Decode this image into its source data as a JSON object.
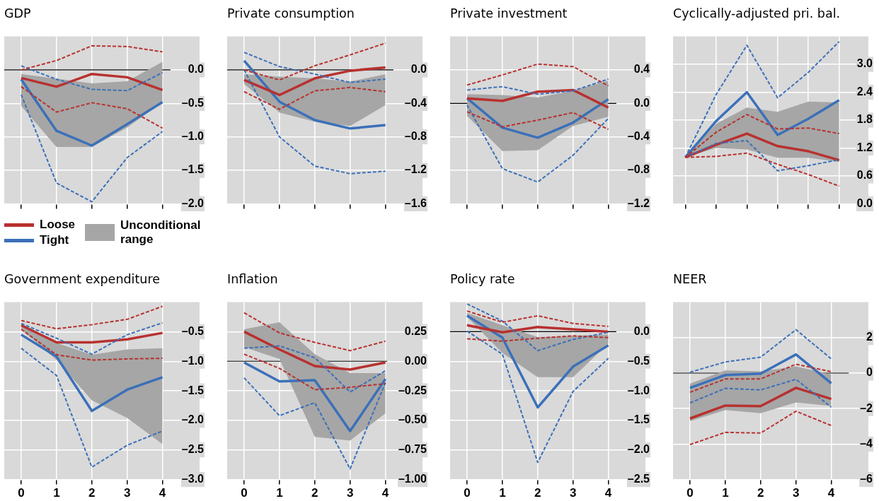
{
  "chart_data": [
    {
      "type": "line",
      "title": "GDP",
      "x": [
        0,
        1,
        2,
        3,
        4
      ],
      "xlim": [
        -0.48,
        5.05
      ],
      "xticks": [
        0,
        1,
        2,
        3,
        4
      ],
      "ylim": [
        -2.0,
        0.5
      ],
      "yticks": [
        {
          "value": 0,
          "label": "0.0"
        },
        {
          "value": -0.5,
          "label": "–0.5"
        },
        {
          "value": -1.0,
          "label": "–1.0"
        },
        {
          "value": -1.5,
          "label": "–1.5"
        },
        {
          "value": -2.0,
          "label": "–2.0"
        }
      ],
      "tick_labels": "y",
      "grid": true,
      "marker": "none",
      "legend": "bottom",
      "ref_lines": [
        {
          "axis": "y",
          "value": 0,
          "color": "#000000"
        }
      ],
      "series": [
        {
          "name": "Loose",
          "type": "line",
          "color": "#b8312f",
          "values": [
            -0.12,
            -0.25,
            -0.06,
            -0.11,
            -0.3
          ]
        },
        {
          "name": "Tight",
          "type": "line",
          "color": "#3b70b9",
          "values": [
            -0.14,
            -0.91,
            -1.13,
            -0.81,
            -0.48
          ]
        },
        {
          "name": "Unconditional range",
          "type": "line",
          "color": "#a6a6a6",
          "values": [
            null,
            null,
            null,
            null,
            null
          ],
          "lower": [
            -0.54,
            -1.15,
            -1.15,
            -0.86,
            -0.48
          ],
          "upper": [
            -0.06,
            -0.13,
            -0.2,
            -0.17,
            0.12
          ]
        },
        {
          "type": "line",
          "color": "#b8312f",
          "line_style": "dashed",
          "values": [
            0.0,
            0.14,
            0.36,
            0.35,
            0.27
          ]
        },
        {
          "type": "line",
          "color": "#b8312f",
          "line_style": "dashed",
          "values": [
            -0.25,
            -0.63,
            -0.49,
            -0.58,
            -0.87
          ]
        },
        {
          "type": "line",
          "color": "#3b70b9",
          "line_style": "dashed",
          "values": [
            0.06,
            -0.14,
            -0.29,
            -0.31,
            -0.04
          ]
        },
        {
          "type": "line",
          "color": "#3b70b9",
          "line_style": "dashed",
          "values": [
            -0.37,
            -1.69,
            -1.97,
            -1.31,
            -0.92
          ]
        }
      ]
    },
    {
      "type": "line",
      "title": "Private consumption",
      "x": [
        0,
        1,
        2,
        3,
        4
      ],
      "xlim": [
        -0.48,
        5.05
      ],
      "xticks": [
        0,
        1,
        2,
        3,
        4
      ],
      "ylim": [
        -1.6,
        0.4
      ],
      "yticks": [
        {
          "value": 0,
          "label": "0.0"
        },
        {
          "value": -0.4,
          "label": "–0.4"
        },
        {
          "value": -0.8,
          "label": "–0.8"
        },
        {
          "value": -1.2,
          "label": "–1.2"
        },
        {
          "value": -1.6,
          "label": "–1.6"
        }
      ],
      "tick_labels": "y",
      "grid": true,
      "marker": "none",
      "ref_lines": [
        {
          "axis": "y",
          "value": 0,
          "color": "#000000"
        }
      ],
      "series": [
        {
          "type": "line",
          "color": "#b8312f",
          "values": [
            -0.12,
            -0.3,
            -0.1,
            -0.01,
            0.03
          ]
        },
        {
          "type": "line",
          "color": "#3b70b9",
          "values": [
            0.11,
            -0.38,
            -0.6,
            -0.7,
            -0.66
          ]
        },
        {
          "type": "line",
          "color": "#a6a6a6",
          "values": [
            null,
            null,
            null,
            null,
            null
          ],
          "lower": [
            -0.17,
            -0.51,
            -0.62,
            -0.67,
            -0.42
          ],
          "upper": [
            -0.05,
            -0.08,
            -0.1,
            -0.14,
            -0.05
          ]
        },
        {
          "type": "line",
          "color": "#b8312f",
          "line_style": "dashed",
          "values": [
            0.0,
            -0.12,
            0.05,
            0.18,
            0.32
          ]
        },
        {
          "type": "line",
          "color": "#b8312f",
          "line_style": "dashed",
          "values": [
            -0.26,
            -0.47,
            -0.25,
            -0.21,
            -0.26
          ]
        },
        {
          "type": "line",
          "color": "#3b70b9",
          "line_style": "dashed",
          "values": [
            0.21,
            0.04,
            -0.05,
            -0.15,
            -0.11
          ]
        },
        {
          "type": "line",
          "color": "#3b70b9",
          "line_style": "dashed",
          "values": [
            0.0,
            -0.8,
            -1.15,
            -1.24,
            -1.21
          ]
        }
      ]
    },
    {
      "type": "line",
      "title": "Private investment",
      "x": [
        0,
        1,
        2,
        3,
        4
      ],
      "xlim": [
        -0.48,
        5.05
      ],
      "xticks": [
        0,
        1,
        2,
        3,
        4
      ],
      "ylim": [
        -1.2,
        0.8
      ],
      "yticks": [
        {
          "value": 0.4,
          "label": "0.4"
        },
        {
          "value": 0,
          "label": "0.0"
        },
        {
          "value": -0.4,
          "label": "–0.4"
        },
        {
          "value": -0.8,
          "label": "–0.8"
        },
        {
          "value": -1.2,
          "label": "–1.2"
        }
      ],
      "tick_labels": "y",
      "grid": true,
      "marker": "none",
      "ref_lines": [
        {
          "axis": "y",
          "value": 0,
          "color": "#000000"
        }
      ],
      "series": [
        {
          "type": "line",
          "color": "#b8312f",
          "values": [
            0.06,
            0.03,
            0.14,
            0.16,
            -0.05
          ]
        },
        {
          "type": "line",
          "color": "#3b70b9",
          "values": [
            0.06,
            -0.29,
            -0.41,
            -0.23,
            0.05
          ]
        },
        {
          "type": "line",
          "color": "#a6a6a6",
          "values": [
            null,
            null,
            null,
            null,
            null
          ],
          "lower": [
            -0.15,
            -0.57,
            -0.56,
            -0.27,
            -0.16
          ],
          "upper": [
            0.11,
            0.1,
            0.07,
            0.15,
            0.27
          ]
        },
        {
          "type": "line",
          "color": "#b8312f",
          "line_style": "dashed",
          "values": [
            0.22,
            0.34,
            0.47,
            0.44,
            0.21
          ]
        },
        {
          "type": "line",
          "color": "#b8312f",
          "line_style": "dashed",
          "values": [
            -0.1,
            -0.28,
            -0.2,
            -0.11,
            -0.31
          ]
        },
        {
          "type": "line",
          "color": "#3b70b9",
          "line_style": "dashed",
          "values": [
            0.16,
            0.2,
            0.11,
            0.15,
            0.29
          ]
        },
        {
          "type": "line",
          "color": "#3b70b9",
          "line_style": "dashed",
          "values": [
            -0.02,
            -0.78,
            -0.94,
            -0.62,
            -0.18
          ]
        }
      ]
    },
    {
      "type": "line",
      "title": "Cyclically-adjusted pri. bal.",
      "categories": [
        null,
        null,
        null,
        null,
        null,
        null
      ],
      "ylim": [
        0,
        3.6
      ],
      "yticks": [
        {
          "value": 3.0,
          "label": "3.0"
        },
        {
          "value": 2.4,
          "label": "2.4"
        },
        {
          "value": 1.8,
          "label": "1.8"
        },
        {
          "value": 1.2,
          "label": "1.2"
        },
        {
          "value": 0.6,
          "label": "0.6"
        },
        {
          "value": 0,
          "label": "0.0"
        }
      ],
      "tick_labels": "y",
      "grid": true,
      "marker": "none",
      "series": [
        {
          "type": "line",
          "color": "#b8312f",
          "values": [
            1.0,
            1.27,
            1.51,
            1.24,
            1.13,
            0.94
          ]
        },
        {
          "type": "line",
          "color": "#3b70b9",
          "values": [
            1.0,
            1.78,
            2.4,
            1.48,
            1.83,
            2.23
          ]
        },
        {
          "type": "line",
          "color": "#a6a6a6",
          "values": [
            null,
            null,
            null,
            null,
            null,
            null
          ],
          "lower": [
            1.0,
            1.2,
            1.17,
            0.99,
            0.99,
            0.9
          ],
          "upper": [
            1.0,
            1.72,
            2.07,
            1.98,
            2.2,
            2.18
          ]
        },
        {
          "type": "line",
          "color": "#b8312f",
          "line_style": "dashed",
          "values": [
            1.0,
            1.54,
            1.92,
            1.61,
            1.63,
            1.51
          ]
        },
        {
          "type": "line",
          "color": "#b8312f",
          "line_style": "dashed",
          "values": [
            1.0,
            1.02,
            1.09,
            0.85,
            0.63,
            0.38
          ]
        },
        {
          "type": "line",
          "color": "#3b70b9",
          "line_style": "dashed",
          "values": [
            1.0,
            2.35,
            3.41,
            2.28,
            2.83,
            3.49
          ]
        },
        {
          "type": "line",
          "color": "#3b70b9",
          "line_style": "dashed",
          "values": [
            1.0,
            1.3,
            1.36,
            0.71,
            0.82,
            0.95
          ]
        }
      ]
    },
    {
      "type": "line",
      "title": "Government expenditure",
      "x": [
        0,
        1,
        2,
        3,
        4
      ],
      "xlim": [
        -0.48,
        5.05
      ],
      "xticks": [
        0,
        1,
        2,
        3,
        4
      ],
      "ylim": [
        -3.0,
        0.0
      ],
      "yticks": [
        {
          "value": -0.5,
          "label": "–0.5"
        },
        {
          "value": -1.0,
          "label": "–1.0"
        },
        {
          "value": -1.5,
          "label": "–1.5"
        },
        {
          "value": -2.0,
          "label": "–2.0"
        },
        {
          "value": -2.5,
          "label": "–2.5"
        },
        {
          "value": -3.0,
          "label": "–3.0"
        }
      ],
      "grid": true,
      "marker": "none",
      "series": [
        {
          "type": "line",
          "color": "#b8312f",
          "values": [
            -0.39,
            -0.68,
            -0.68,
            -0.63,
            -0.52
          ]
        },
        {
          "type": "line",
          "color": "#3b70b9",
          "values": [
            -0.55,
            -0.92,
            -1.84,
            -1.48,
            -1.27
          ]
        },
        {
          "type": "line",
          "color": "#a6a6a6",
          "values": [
            null,
            null,
            null,
            null,
            null
          ],
          "lower": [
            -0.46,
            -0.98,
            -1.66,
            -1.96,
            -2.4
          ],
          "upper": [
            -0.39,
            -0.69,
            -0.89,
            -0.8,
            -0.78
          ]
        },
        {
          "type": "line",
          "color": "#b8312f",
          "line_style": "dashed",
          "values": [
            -0.31,
            -0.45,
            -0.38,
            -0.29,
            -0.07
          ]
        },
        {
          "type": "line",
          "color": "#b8312f",
          "line_style": "dashed",
          "values": [
            -0.46,
            -0.89,
            -0.98,
            -0.96,
            -0.95
          ]
        },
        {
          "type": "line",
          "color": "#3b70b9",
          "line_style": "dashed",
          "values": [
            -0.36,
            -0.61,
            -0.88,
            -0.55,
            -0.35
          ]
        },
        {
          "type": "line",
          "color": "#3b70b9",
          "line_style": "dashed",
          "values": [
            -0.78,
            -1.24,
            -2.79,
            -2.42,
            -2.18
          ]
        }
      ]
    },
    {
      "type": "line",
      "title": "Inflation",
      "x": [
        0,
        1,
        2,
        3,
        4
      ],
      "xlim": [
        -0.48,
        5.05
      ],
      "xticks": [
        0,
        1,
        2,
        3,
        4
      ],
      "ylim": [
        -1.0,
        0.5
      ],
      "yticks": [
        {
          "value": 0.25,
          "label": "0.25"
        },
        {
          "value": 0,
          "label": "0.00"
        },
        {
          "value": -0.25,
          "label": "–0.25"
        },
        {
          "value": -0.5,
          "label": "–0.50"
        },
        {
          "value": -0.75,
          "label": "–0.75"
        },
        {
          "value": -1.0,
          "label": "–1.00"
        }
      ],
      "grid": true,
      "marker": "none",
      "ref_lines": [
        {
          "axis": "y",
          "value": 0,
          "color": "#000000"
        }
      ],
      "series": [
        {
          "type": "line",
          "color": "#b8312f",
          "values": [
            0.25,
            0.1,
            -0.04,
            -0.07,
            -0.01
          ]
        },
        {
          "type": "line",
          "color": "#3b70b9",
          "values": [
            -0.01,
            -0.17,
            -0.16,
            -0.59,
            -0.15
          ]
        },
        {
          "type": "line",
          "color": "#a6a6a6",
          "values": [
            null,
            null,
            null,
            null,
            null
          ],
          "lower": [
            0.12,
            0.02,
            -0.64,
            -0.67,
            -0.44
          ],
          "upper": [
            0.27,
            0.33,
            0.06,
            -0.1,
            -0.1
          ]
        },
        {
          "type": "line",
          "color": "#b8312f",
          "line_style": "dashed",
          "values": [
            0.41,
            0.24,
            0.16,
            0.09,
            0.17
          ]
        },
        {
          "type": "line",
          "color": "#b8312f",
          "line_style": "dashed",
          "values": [
            0.06,
            -0.06,
            -0.24,
            -0.22,
            -0.19
          ]
        },
        {
          "type": "line",
          "color": "#3b70b9",
          "line_style": "dashed",
          "values": [
            0.11,
            0.13,
            0.03,
            -0.26,
            -0.08
          ]
        },
        {
          "type": "line",
          "color": "#3b70b9",
          "line_style": "dashed",
          "values": [
            -0.14,
            -0.46,
            -0.35,
            -0.91,
            -0.18
          ]
        }
      ]
    },
    {
      "type": "line",
      "title": "Policy rate",
      "x": [
        0,
        1,
        2,
        3,
        4
      ],
      "xlim": [
        -0.48,
        5.05
      ],
      "xticks": [
        0,
        1,
        2,
        3,
        4
      ],
      "ylim": [
        -2.5,
        0.5
      ],
      "yticks": [
        {
          "value": 0,
          "label": "0.0"
        },
        {
          "value": -0.5,
          "label": "–0.5"
        },
        {
          "value": -1.0,
          "label": "–1.0"
        },
        {
          "value": -1.5,
          "label": "–1.5"
        },
        {
          "value": -2.0,
          "label": "–2.0"
        },
        {
          "value": -2.5,
          "label": "–2.5"
        }
      ],
      "grid": true,
      "marker": "none",
      "ref_lines": [
        {
          "axis": "y",
          "value": 0,
          "color": "#000000"
        }
      ],
      "series": [
        {
          "type": "line",
          "color": "#b8312f",
          "values": [
            0.11,
            -0.01,
            0.08,
            0.04,
            0.0
          ]
        },
        {
          "type": "line",
          "color": "#3b70b9",
          "values": [
            0.27,
            -0.1,
            -1.28,
            -0.59,
            -0.23
          ]
        },
        {
          "type": "line",
          "color": "#a6a6a6",
          "values": [
            null,
            null,
            null,
            null,
            null
          ],
          "lower": [
            0.25,
            -0.36,
            -0.77,
            -0.77,
            -0.2
          ],
          "upper": [
            0.32,
            0.11,
            -0.09,
            -0.07,
            -0.05
          ]
        },
        {
          "type": "line",
          "color": "#b8312f",
          "line_style": "dashed",
          "values": [
            0.35,
            0.16,
            0.27,
            0.14,
            0.09
          ]
        },
        {
          "type": "line",
          "color": "#b8312f",
          "line_style": "dashed",
          "values": [
            -0.12,
            -0.16,
            -0.11,
            -0.07,
            -0.1
          ]
        },
        {
          "type": "line",
          "color": "#3b70b9",
          "line_style": "dashed",
          "values": [
            0.47,
            0.18,
            -0.32,
            -0.13,
            -0.01
          ]
        },
        {
          "type": "line",
          "color": "#3b70b9",
          "line_style": "dashed",
          "values": [
            0.01,
            -0.38,
            -2.21,
            -1.01,
            -0.45
          ]
        }
      ]
    },
    {
      "type": "line",
      "title": "NEER",
      "x": [
        0,
        1,
        2,
        3,
        4
      ],
      "xlim": [
        -0.48,
        5.05
      ],
      "xticks": [
        0,
        1,
        2,
        3,
        4
      ],
      "ylim": [
        -6,
        4
      ],
      "yticks": [
        2,
        0,
        {
          "value": -2,
          "label": "–2"
        },
        {
          "value": -4,
          "label": "–4"
        },
        {
          "value": -6,
          "label": "–6"
        }
      ],
      "grid": true,
      "marker": "none",
      "ref_lines": [
        {
          "axis": "y",
          "value": 0,
          "color": "#000000"
        }
      ],
      "series": [
        {
          "type": "line",
          "color": "#b8312f",
          "values": [
            -2.56,
            -1.83,
            -1.86,
            -0.83,
            -1.46
          ]
        },
        {
          "type": "line",
          "color": "#3b70b9",
          "values": [
            -0.83,
            -0.11,
            -0.03,
            1.05,
            -0.57
          ]
        },
        {
          "type": "line",
          "color": "#a6a6a6",
          "values": [
            null,
            null,
            null,
            null,
            null
          ],
          "lower": [
            -2.71,
            -2.08,
            -2.26,
            -1.65,
            -1.85
          ],
          "upper": [
            -0.6,
            0.15,
            0.1,
            0.38,
            -0.08
          ]
        },
        {
          "type": "line",
          "color": "#b8312f",
          "line_style": "dashed",
          "values": [
            -1.08,
            -0.33,
            -0.33,
            0.5,
            0.08
          ]
        },
        {
          "type": "line",
          "color": "#b8312f",
          "line_style": "dashed",
          "values": [
            -4.03,
            -3.34,
            -3.38,
            -2.15,
            -2.96
          ]
        },
        {
          "type": "line",
          "color": "#3b70b9",
          "line_style": "dashed",
          "values": [
            0.05,
            0.63,
            0.9,
            2.45,
            0.8
          ]
        },
        {
          "type": "line",
          "color": "#3b70b9",
          "line_style": "dashed",
          "values": [
            -1.68,
            -0.86,
            -0.95,
            -0.35,
            -1.92
          ]
        }
      ]
    }
  ]
}
